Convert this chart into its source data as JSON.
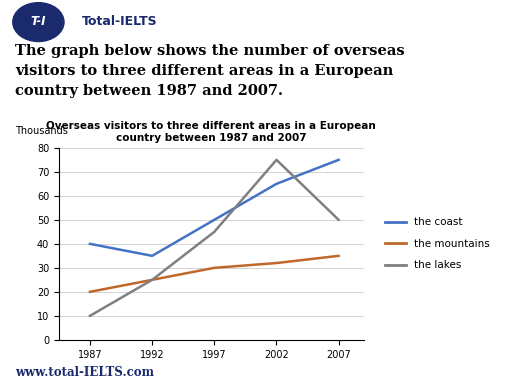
{
  "title_line1": "Overseas visitors to three different areas in a European",
  "title_line2": "country between 1987 and 2007",
  "ylabel": "Thousands",
  "years": [
    1987,
    1992,
    1997,
    2002,
    2007
  ],
  "coast": [
    40,
    35,
    50,
    65,
    75
  ],
  "mountains": [
    20,
    25,
    30,
    32,
    35
  ],
  "lakes": [
    10,
    25,
    45,
    75,
    50
  ],
  "coast_color": "#4472C4",
  "mountains_color": "#C0682A",
  "lakes_color": "#808080",
  "ylim": [
    0,
    80
  ],
  "yticks": [
    0,
    10,
    20,
    30,
    40,
    50,
    60,
    70,
    80
  ],
  "legend_labels": [
    "the coast",
    "the mountains",
    "the lakes"
  ],
  "footer": "www.total-IELTS.com",
  "bg_color": "#FFFFFF",
  "header_badge_color": "#1a2a6c",
  "header_text_color": "#1a2a6c",
  "footer_color": "#1a2a6c",
  "desc_fontsize": 10.5,
  "chart_title_fontsize": 7.5
}
